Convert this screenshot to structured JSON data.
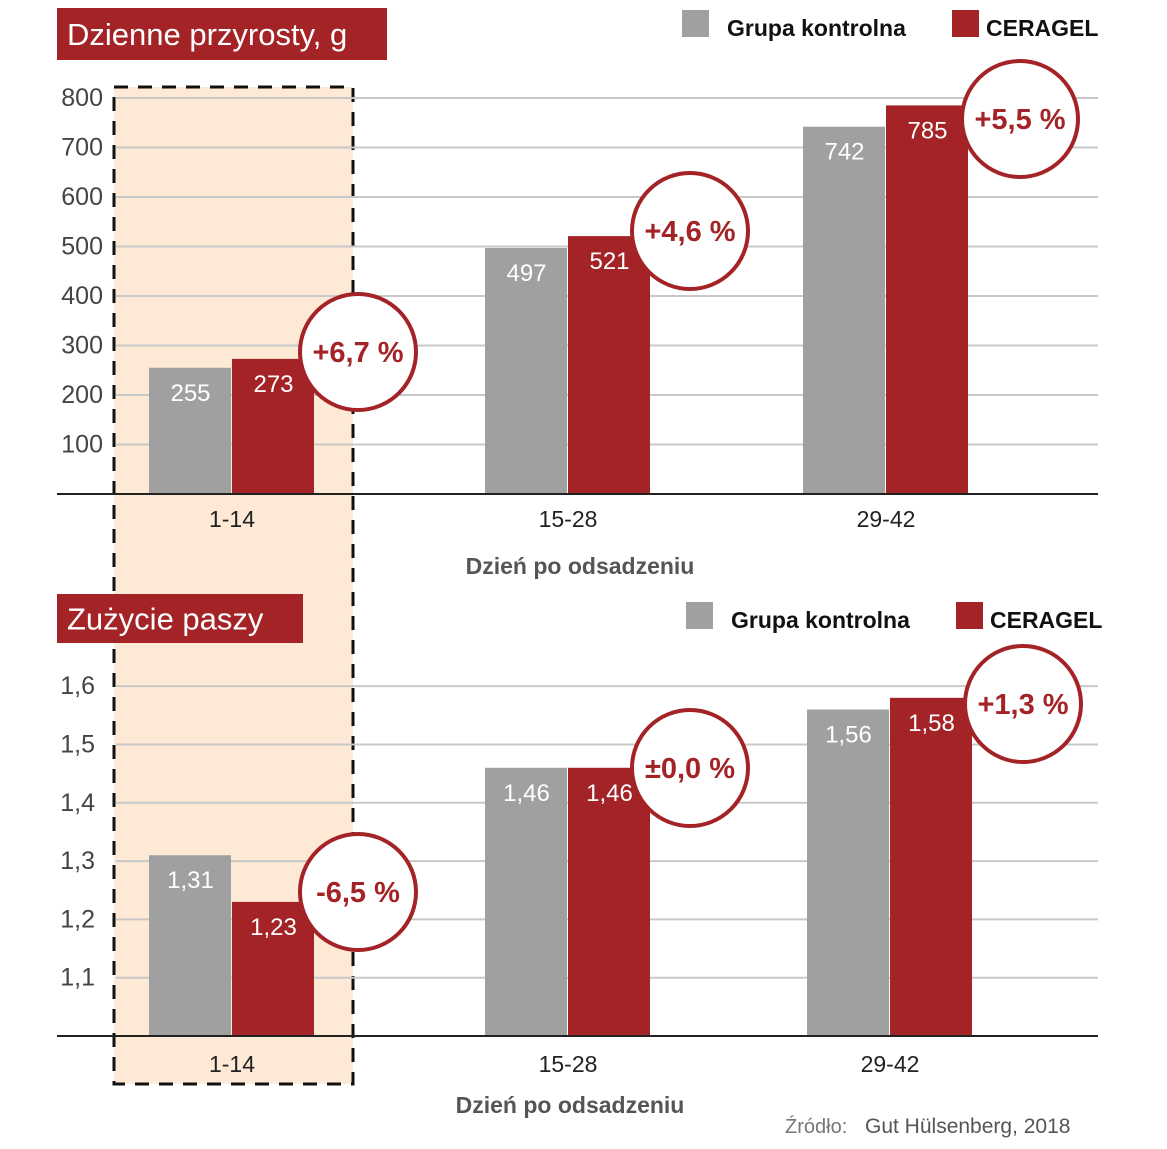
{
  "colors": {
    "control": "#a0a0a0",
    "ceragel": "#a32326",
    "highlight": "#fde9d6",
    "title_bg": "#a32326",
    "grid": "#c8c8c8",
    "axis": "#222222",
    "tick_text": "#444444",
    "xlabel_text": "#555555",
    "source_text": "#555555"
  },
  "chart_data": [
    {
      "type": "bar",
      "title": "Dzienne przyrosty, g",
      "categories": [
        "1-14",
        "15-28",
        "29-42"
      ],
      "series": [
        {
          "name": "Grupa kontrolna",
          "values": [
            255,
            497,
            742
          ],
          "labels": [
            "255",
            "497",
            "742"
          ]
        },
        {
          "name": "CERAGEL",
          "values": [
            273,
            521,
            785
          ],
          "labels": [
            "273",
            "521",
            "785"
          ]
        }
      ],
      "changes": [
        "+6,7 %",
        "+4,6 %",
        "+5,5 %"
      ],
      "xlabel": "Dzień po odsadzeniu",
      "ylabel": "",
      "ylim": [
        0,
        800
      ],
      "yticks": [
        100,
        200,
        300,
        400,
        500,
        600,
        700,
        800
      ],
      "ytick_labels": [
        "100",
        "200",
        "300",
        "400",
        "500",
        "600",
        "700",
        "800"
      ],
      "grid": true,
      "legend": "top-right"
    },
    {
      "type": "bar",
      "title": "Zużycie paszy",
      "categories": [
        "1-14",
        "15-28",
        "29-42"
      ],
      "series": [
        {
          "name": "Grupa kontrolna",
          "values": [
            1.31,
            1.46,
            1.56
          ],
          "labels": [
            "1,31",
            "1,46",
            "1,56"
          ]
        },
        {
          "name": "CERAGEL",
          "values": [
            1.23,
            1.46,
            1.58
          ],
          "labels": [
            "1,23",
            "1,46",
            "1,58"
          ]
        }
      ],
      "changes": [
        "-6,5 %",
        "±0,0 %",
        "+1,3 %"
      ],
      "xlabel": "Dzień po odsadzeniu",
      "ylabel": "",
      "ylim": [
        1.0,
        1.65
      ],
      "yticks": [
        1.1,
        1.2,
        1.3,
        1.4,
        1.5,
        1.6
      ],
      "ytick_labels": [
        "1,1",
        "1,2",
        "1,3",
        "1,4",
        "1,5",
        "1,6"
      ],
      "grid": true,
      "legend": "top-right"
    }
  ],
  "highlight_category": "1-14",
  "source": {
    "label": "Źródło:",
    "text": "Gut Hülsenberg, 2018"
  }
}
